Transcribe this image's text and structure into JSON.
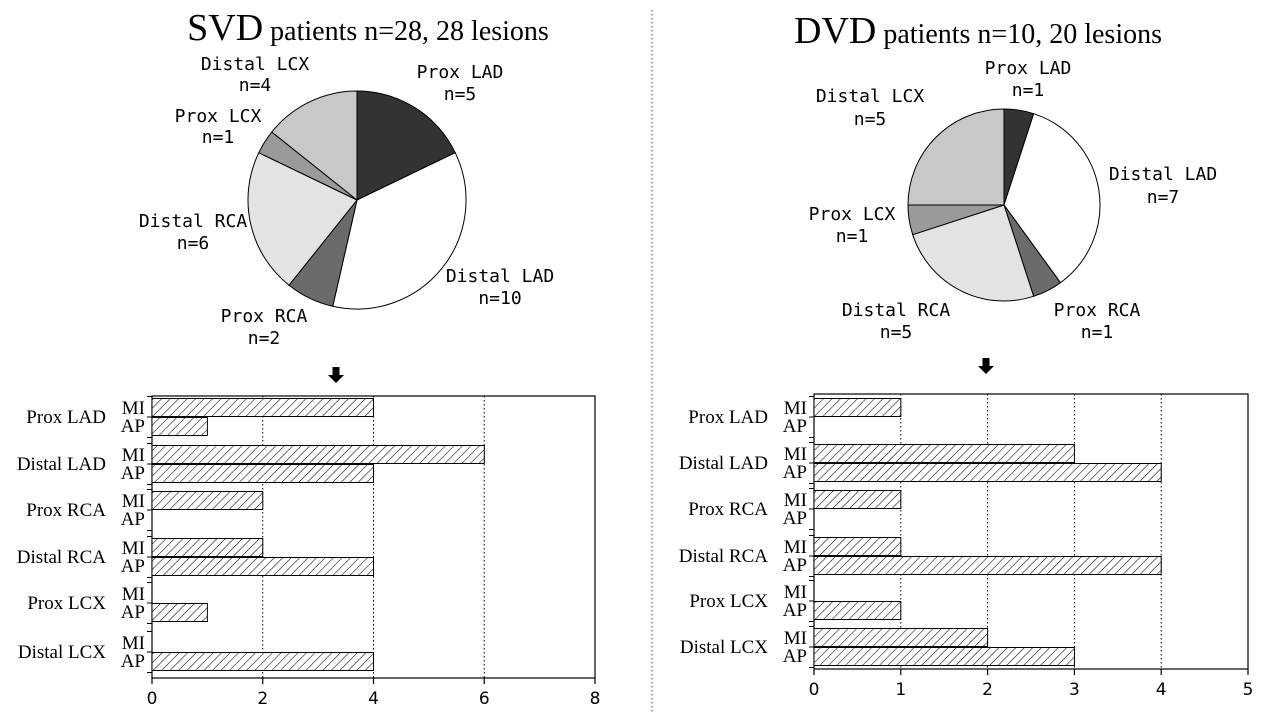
{
  "chart_data": [
    {
      "type": "pie",
      "title_main": "SVD",
      "title_rest": " patients n=28, 28 lesions",
      "slices": [
        {
          "name": "Prox LAD",
          "count_label": "n=5",
          "value": 5,
          "color": "#333333"
        },
        {
          "name": "Distal LAD",
          "count_label": "n=10",
          "value": 10,
          "color": "#ffffff"
        },
        {
          "name": "Prox RCA",
          "count_label": "n=2",
          "value": 2,
          "color": "#6b6b6b"
        },
        {
          "name": "Distal RCA",
          "count_label": "n=6",
          "value": 6,
          "color": "#e3e3e3"
        },
        {
          "name": "Prox LCX",
          "count_label": "n=1",
          "value": 1,
          "color": "#9a9a9a"
        },
        {
          "name": "Distal LCX",
          "count_label": "n=4",
          "value": 4,
          "color": "#c8c8c8"
        }
      ]
    },
    {
      "type": "bar",
      "orientation": "horizontal",
      "categories": [
        "Prox LAD",
        "Distal LAD",
        "Prox RCA",
        "Distal RCA",
        "Prox LCX",
        "Distal LCX"
      ],
      "series": [
        {
          "name": "MI",
          "values": [
            4,
            6,
            2,
            2,
            0,
            0
          ]
        },
        {
          "name": "AP",
          "values": [
            1,
            4,
            0,
            4,
            1,
            4
          ]
        }
      ],
      "xlim": [
        0,
        8
      ],
      "xticks": [
        "0",
        "2",
        "4",
        "6",
        "8"
      ],
      "grid": true
    },
    {
      "type": "pie",
      "title_main": "DVD",
      "title_rest": " patients n=10, 20 lesions",
      "slices": [
        {
          "name": "Prox LAD",
          "count_label": "n=1",
          "value": 1,
          "color": "#333333"
        },
        {
          "name": "Distal LAD",
          "count_label": "n=7",
          "value": 7,
          "color": "#ffffff"
        },
        {
          "name": "Prox RCA",
          "count_label": "n=1",
          "value": 1,
          "color": "#6b6b6b"
        },
        {
          "name": "Distal RCA",
          "count_label": "n=5",
          "value": 5,
          "color": "#e3e3e3"
        },
        {
          "name": "Prox LCX",
          "count_label": "n=1",
          "value": 1,
          "color": "#9a9a9a"
        },
        {
          "name": "Distal LCX",
          "count_label": "n=5",
          "value": 5,
          "color": "#c8c8c8"
        }
      ]
    },
    {
      "type": "bar",
      "orientation": "horizontal",
      "categories": [
        "Prox LAD",
        "Distal LAD",
        "Prox RCA",
        "Distal RCA",
        "Prox LCX",
        "Distal LCX"
      ],
      "series": [
        {
          "name": "MI",
          "values": [
            1,
            3,
            1,
            1,
            0,
            2
          ]
        },
        {
          "name": "AP",
          "values": [
            0,
            4,
            0,
            4,
            1,
            3
          ]
        }
      ],
      "xlim": [
        0,
        5
      ],
      "xticks": [
        "0",
        "1",
        "2",
        "3",
        "4",
        "5"
      ],
      "grid": true
    }
  ]
}
